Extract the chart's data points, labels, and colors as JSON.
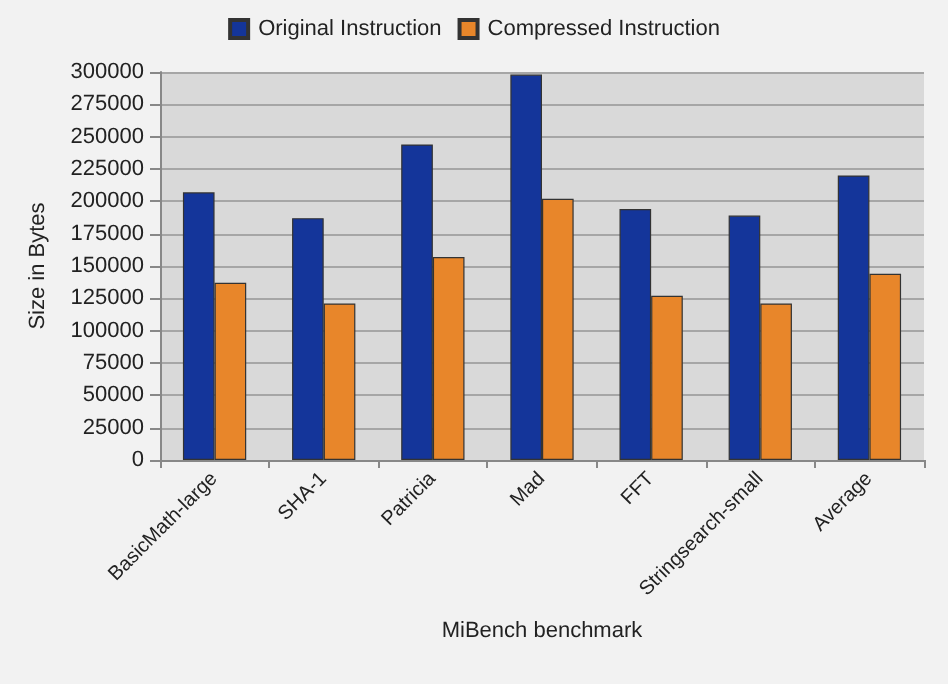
{
  "chart_data": {
    "type": "bar",
    "xlabel": "MiBench benchmark",
    "ylabel": "Size in Bytes",
    "categories": [
      "BasicMath-large",
      "SHA-1",
      "Patricia",
      "Mad",
      "FFT",
      "Stringsearch-small",
      "Average"
    ],
    "series": [
      {
        "name": "Original Instruction",
        "color": "#14359a",
        "values": [
          207000,
          187000,
          244000,
          298000,
          194000,
          189000,
          220000
        ]
      },
      {
        "name": "Compressed Instruction",
        "color": "#e8862a",
        "values": [
          137000,
          121000,
          157000,
          202000,
          127000,
          121000,
          144000
        ]
      }
    ],
    "ylim": [
      0,
      300000
    ],
    "yticks": [
      0,
      25000,
      50000,
      75000,
      100000,
      125000,
      150000,
      175000,
      200000,
      225000,
      250000,
      275000,
      300000
    ],
    "grid": "y",
    "legend": "top"
  }
}
